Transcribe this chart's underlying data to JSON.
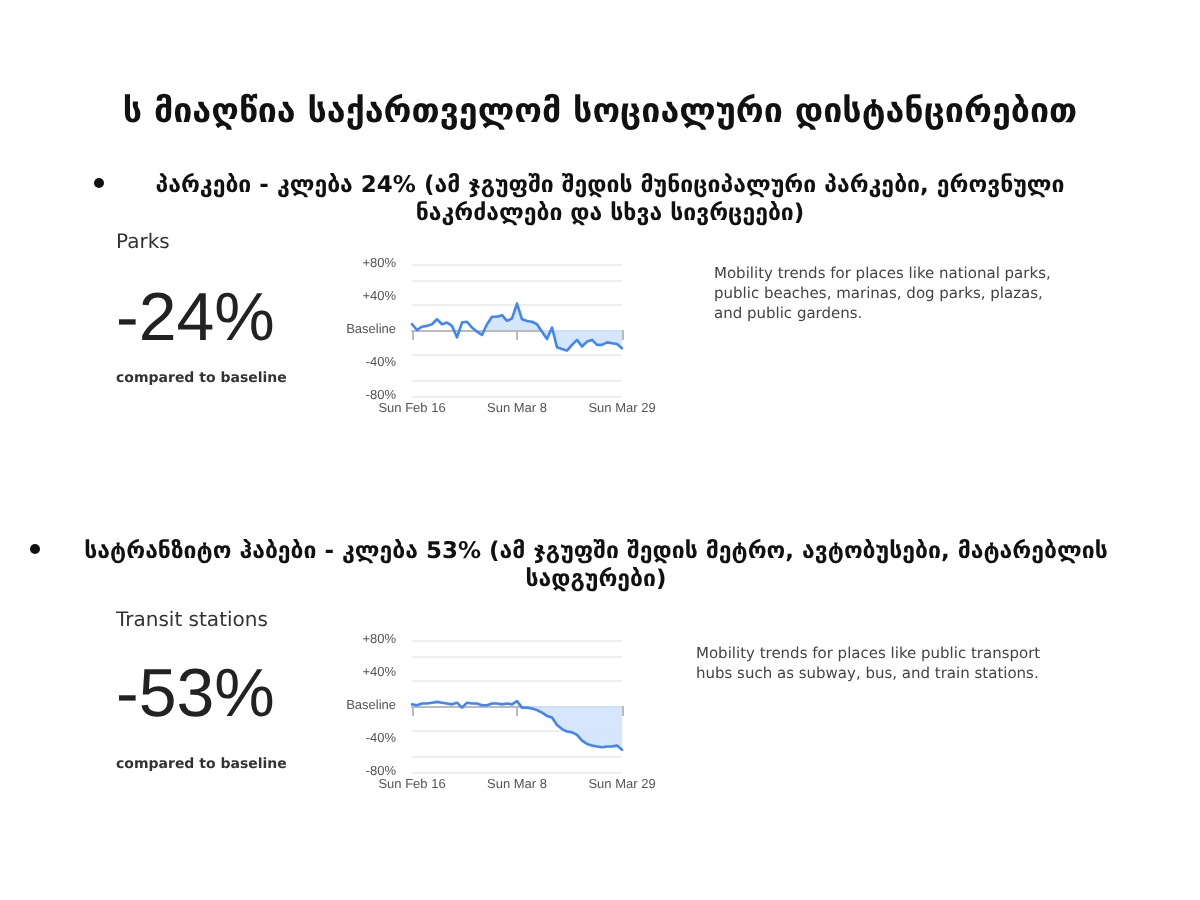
{
  "chart_data": [
    {
      "type": "line",
      "title": "ს მიაღწია საქართველომ სოციალური დისტანცირებით",
      "subtitle": "პარკები - კლება 24% (ამ ჯგუფში შედის მუნიციპალური პარკები, ეროვნული ნაკრძალები და სხვა სივრცეები)",
      "annotations": [
        "Parks",
        "-24%",
        "compared to baseline",
        "Mobility trends for places like national parks, public beaches, marinas, dog parks, plazas, and public gardens."
      ],
      "x": [
        "--02-16",
        "--02-17",
        "--02-18",
        "--02-19",
        "--02-20",
        "--02-21",
        "--02-22",
        "--02-23",
        "--02-24",
        "--02-25",
        "--02-26",
        "--02-27",
        "--02-28",
        "--02-29",
        "--03-01",
        "--03-02",
        "--03-03",
        "--03-04",
        "--03-05",
        "--03-06",
        "--03-07",
        "--03-08",
        "--03-09",
        "--03-10",
        "--03-11",
        "--03-12",
        "--03-13",
        "--03-14",
        "--03-15",
        "--03-16",
        "--03-17",
        "--03-18",
        "--03-19",
        "--03-20",
        "--03-21",
        "--03-22",
        "--03-23",
        "--03-24",
        "--03-25",
        "--03-26",
        "--03-27",
        "--03-28",
        "--03-29"
      ],
      "series": [
        {
          "color": "#4285f4",
          "values": [
            7,
            0,
            4,
            5,
            7,
            13,
            7,
            9,
            5,
            -9,
            9,
            10,
            3,
            -2,
            -6,
            7,
            16,
            16,
            18,
            11,
            14,
            32,
            13,
            11,
            10,
            7,
            -2,
            -11,
            3,
            -21,
            -23,
            -25,
            -18,
            -12,
            -20,
            -14,
            -12,
            -18,
            -18,
            -15,
            -16,
            -17,
            -22
          ]
        },
        {
          "type": "area",
          "color": "#d2e3fc",
          "values": [
            null,
            null,
            null,
            null,
            null,
            null,
            null,
            null,
            null,
            null,
            null,
            null,
            null,
            null,
            null,
            7,
            16,
            16,
            18,
            11,
            14,
            32,
            13,
            11,
            10,
            7,
            -2,
            -11,
            3,
            -21,
            -23,
            -25,
            -18,
            -12,
            -20,
            -14,
            -12,
            -18,
            -18,
            -15,
            -16,
            -17,
            -22
          ]
        }
      ],
      "xlim": [
        "--02-16",
        "--03-29"
      ],
      "xticks": [
        {
          "value": "--02-16",
          "label": "Sun Feb 16"
        },
        {
          "value": "--03-08",
          "label": "Sun Mar 8"
        },
        {
          "value": "--03-29",
          "label": "Sun Mar 29"
        }
      ],
      "ylim": [
        -80,
        80
      ],
      "yticks": [
        {
          "value": -80,
          "label": "-80%"
        },
        {
          "value": -40,
          "label": "-40%"
        },
        {
          "value": 0,
          "label": "Baseline"
        },
        {
          "value": 40,
          "label": "+40%"
        },
        {
          "value": 80,
          "label": "+80%"
        }
      ],
      "grid": "y",
      "marker": "none",
      "line_style": "solid"
    },
    {
      "type": "line",
      "subtitle": "სატრანზიტო ჰაბები - კლება 53% (ამ ჯგუფში შედის მეტრო, ავტობუსები, მატარებლის სადგურები)",
      "annotations": [
        "Transit stations",
        "-53%",
        "compared to baseline",
        "Mobility trends for places like public transport hubs such as subway, bus, and train stations."
      ],
      "x": [
        "--02-16",
        "--02-17",
        "--02-18",
        "--02-19",
        "--02-20",
        "--02-21",
        "--02-22",
        "--02-23",
        "--02-24",
        "--02-25",
        "--02-26",
        "--02-27",
        "--02-28",
        "--02-29",
        "--03-01",
        "--03-02",
        "--03-03",
        "--03-04",
        "--03-05",
        "--03-06",
        "--03-07",
        "--03-08",
        "--03-09",
        "--03-10",
        "--03-11",
        "--03-12",
        "--03-13",
        "--03-14",
        "--03-15",
        "--03-16",
        "--03-17",
        "--03-18",
        "--03-19",
        "--03-20",
        "--03-21",
        "--03-22",
        "--03-23",
        "--03-24",
        "--03-25",
        "--03-26",
        "--03-27",
        "--03-28",
        "--03-29"
      ],
      "series": [
        {
          "color": "#4285f4",
          "values": [
            2,
            1,
            3,
            3,
            4,
            5,
            4,
            3,
            2,
            4,
            -2,
            4,
            3,
            3,
            1,
            1,
            3,
            3,
            2,
            3,
            2,
            6,
            -2,
            -2,
            -3,
            -5,
            -8,
            -12,
            -14,
            -23,
            -28,
            -31,
            -32,
            -35,
            -42,
            -46,
            -48,
            -49,
            -50,
            -49,
            -49,
            -48,
            -53
          ]
        },
        {
          "type": "area",
          "color": "#d2e3fc",
          "values": [
            null,
            null,
            null,
            null,
            null,
            null,
            null,
            null,
            null,
            null,
            null,
            null,
            null,
            null,
            null,
            null,
            null,
            null,
            null,
            null,
            null,
            6,
            -2,
            -2,
            -3,
            -5,
            -8,
            -12,
            -14,
            -23,
            -28,
            -31,
            -32,
            -35,
            -42,
            -46,
            -48,
            -49,
            -50,
            -49,
            -49,
            -48,
            -53
          ]
        }
      ],
      "xlim": [
        "--02-16",
        "--03-29"
      ],
      "xticks": [
        {
          "value": "--02-16",
          "label": "Sun Feb 16"
        },
        {
          "value": "--03-08",
          "label": "Sun Mar 8"
        },
        {
          "value": "--03-29",
          "label": "Sun Mar 29"
        }
      ],
      "ylim": [
        -80,
        80
      ],
      "yticks": [
        {
          "value": -80,
          "label": "-80%"
        },
        {
          "value": -40,
          "label": "-40%"
        },
        {
          "value": 0,
          "label": "Baseline"
        },
        {
          "value": 40,
          "label": "+40%"
        },
        {
          "value": 80,
          "label": "+80%"
        }
      ],
      "grid": "y",
      "marker": "none",
      "line_style": "solid"
    }
  ]
}
